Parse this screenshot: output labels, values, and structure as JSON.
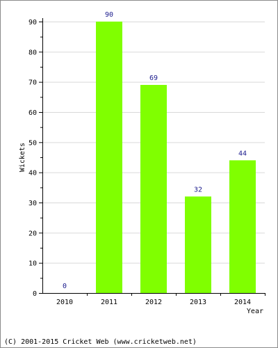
{
  "chart_data": {
    "type": "bar",
    "categories": [
      "2010",
      "2011",
      "2012",
      "2013",
      "2014"
    ],
    "values": [
      0,
      90,
      69,
      32,
      44
    ],
    "xlabel": "Year",
    "ylabel": "Wickets",
    "ylim": [
      0,
      90
    ],
    "yticks": [
      0,
      10,
      20,
      30,
      40,
      50,
      60,
      70,
      80,
      90
    ],
    "grid": true,
    "bar_color": "#80ff00",
    "label_color": "#1a1a8c"
  },
  "footer": {
    "copyright": "(C) 2001-2015 Cricket Web (www.cricketweb.net)"
  }
}
